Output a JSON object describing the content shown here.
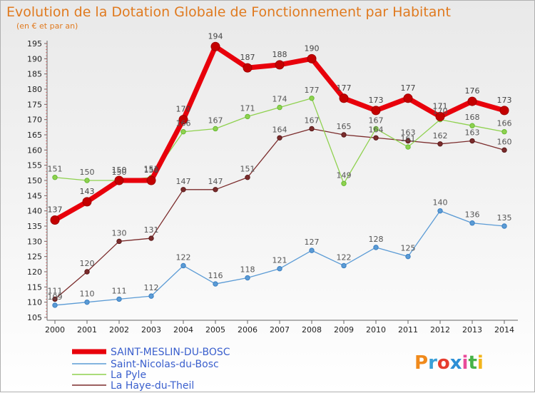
{
  "chart_data": {
    "type": "line",
    "title": "Evolution de la Dotation Globale de Fonctionnement par Habitant",
    "subtitle": "(en € et par an)",
    "xlabel": "",
    "ylabel": "",
    "ylim": [
      105,
      195
    ],
    "yticks": [
      105,
      110,
      115,
      120,
      125,
      130,
      135,
      140,
      145,
      150,
      155,
      160,
      165,
      170,
      175,
      180,
      185,
      190,
      195
    ],
    "categories": [
      "2000",
      "2001",
      "2002",
      "2003",
      "2004",
      "2005",
      "2006",
      "2007",
      "2008",
      "2009",
      "2010",
      "2011",
      "2012",
      "2013",
      "2014"
    ],
    "grid": false,
    "legend_position": "bottom-left",
    "series": [
      {
        "name": "SAINT-MESLIN-DU-BOSC",
        "color": "#e8000b",
        "marker": "#c40000",
        "values": [
          137,
          143,
          150,
          150,
          170,
          194,
          187,
          188,
          190,
          177,
          173,
          177,
          171,
          176,
          173
        ],
        "labels": [
          "137",
          "143",
          "150",
          "150",
          "170",
          "194",
          "187",
          "188",
          "190",
          "177",
          "173",
          "177",
          "171",
          "176",
          "173"
        ]
      },
      {
        "name": "Saint-Nicolas-du-Bosc",
        "color": "#5b9bd5",
        "marker": "#3a7fc2",
        "values": [
          109,
          110,
          111,
          112,
          122,
          116,
          118,
          121,
          127,
          122,
          128,
          125,
          140,
          136,
          135
        ],
        "labels": [
          "109",
          "110",
          "111",
          "112",
          "122",
          "116",
          "118",
          "121",
          "127",
          "122",
          "128",
          "125",
          "140",
          "136",
          "135"
        ]
      },
      {
        "name": "La Pyle",
        "color": "#8fd14f",
        "marker": "#66bb33",
        "values": [
          151,
          150,
          150,
          151,
          166,
          167,
          171,
          174,
          177,
          149,
          167,
          161,
          170,
          168,
          166
        ],
        "labels": [
          "151",
          "150",
          "150",
          "151",
          "166",
          "167",
          "171",
          "174",
          "177",
          "149",
          "167",
          "161",
          "170",
          "168",
          "166"
        ]
      },
      {
        "name": "La Haye-du-Theil",
        "color": "#7b2c2c",
        "marker": "#5a1a1a",
        "values": [
          111,
          120,
          130,
          131,
          147,
          147,
          151,
          164,
          167,
          165,
          164,
          163,
          162,
          163,
          160
        ],
        "labels": [
          "111",
          "120",
          "130",
          "131",
          "147",
          "147",
          "151",
          "164",
          "167",
          "165",
          "164",
          "163",
          "162",
          "163",
          "160"
        ]
      }
    ]
  },
  "branding": {
    "logo_text": "Proxiti"
  }
}
